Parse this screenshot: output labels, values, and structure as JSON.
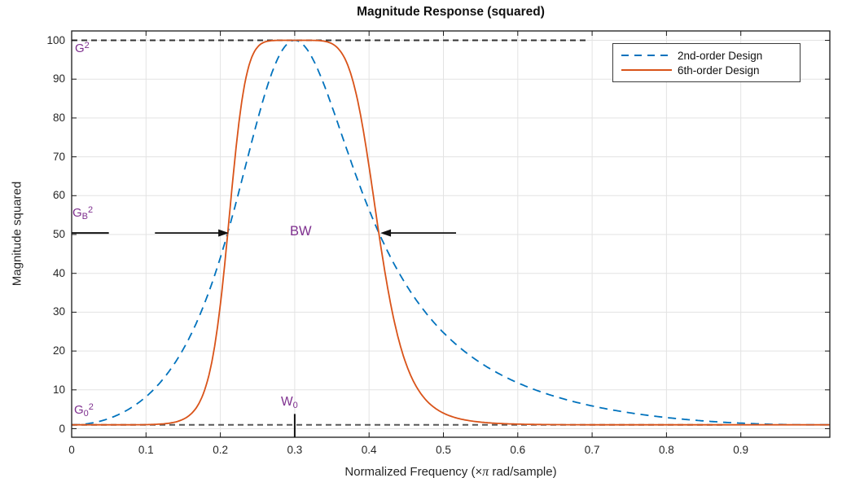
{
  "figure": {
    "title": "Magnitude Response (squared)",
    "background": "#ffffff"
  },
  "axis_labels": {
    "ylabel": "Magnitude squared",
    "xlabel_pre": "Normalized Frequency (×",
    "xlabel_pi": "π",
    "xlabel_post": " rad/sample)"
  },
  "annotations_text": {
    "color": "#7E2F8E",
    "g2": {
      "base": "G",
      "sup": "2"
    },
    "gb2": {
      "base": "G",
      "sub": "B",
      "sup": "2"
    },
    "g02": {
      "base": "G",
      "sub": "0",
      "sup": "2"
    },
    "bw": "BW",
    "w0": {
      "base": "W",
      "sub": "0"
    }
  },
  "chart_data": {
    "type": "line",
    "title": "Magnitude Response (squared)",
    "xlabel": "Normalized Frequency (×π rad/sample)",
    "ylabel": "Magnitude squared",
    "xlim": [
      0,
      1.02
    ],
    "ylim": [
      -2.2,
      102.4
    ],
    "grid": true,
    "grid_color": "#e3e3e3",
    "axis_color": "#1a1a1a",
    "xticks": [
      0,
      0.1,
      0.2,
      0.3,
      0.4,
      0.5,
      0.6,
      0.7,
      0.8,
      0.9
    ],
    "xtick_labels": [
      "0",
      "0.1",
      "0.2",
      "0.3",
      "0.4",
      "0.5",
      "0.6",
      "0.7",
      "0.8",
      "0.9"
    ],
    "yticks": [
      0,
      10,
      20,
      30,
      40,
      50,
      60,
      70,
      80,
      90,
      100
    ],
    "ytick_labels": [
      "0",
      "10",
      "20",
      "30",
      "40",
      "50",
      "60",
      "70",
      "80",
      "90",
      "100"
    ],
    "legend": {
      "position": "northeast",
      "border_color": "#3c3c3c",
      "entries": [
        "2nd-order Design",
        "6th-order Design"
      ]
    },
    "series": [
      {
        "name": "2nd-order Design",
        "color": "#0072BD",
        "line_style": "dashed",
        "line_width": 1.8,
        "model": {
          "type": "digital-peaking-eq",
          "order": 2,
          "N": 1,
          "peak_gain_sq": 100,
          "ref_gain_sq": 1,
          "center_freq": 0.3,
          "t0": 0.509525,
          "b": 0.41592,
          "band_edges": [
            0.211,
            0.415
          ],
          "bandwidth_gain_sq": 50.5
        },
        "samples": [
          [
            0,
            1
          ],
          [
            0.05,
            2.6
          ],
          [
            0.1,
            8.2
          ],
          [
            0.15,
            20.4
          ],
          [
            0.2,
            44.1
          ],
          [
            0.25,
            79.5
          ],
          [
            0.3,
            100
          ],
          [
            0.35,
            83.0
          ],
          [
            0.4,
            56.4
          ],
          [
            0.45,
            37.0
          ],
          [
            0.5,
            24.8
          ],
          [
            0.55,
            17.0
          ],
          [
            0.6,
            11.8
          ],
          [
            0.65,
            8.3
          ],
          [
            0.7,
            5.9
          ],
          [
            0.75,
            4.1
          ],
          [
            0.8,
            2.9
          ],
          [
            0.85,
            2.0
          ],
          [
            0.9,
            1.4
          ],
          [
            0.95,
            1.1
          ],
          [
            1,
            1
          ]
        ]
      },
      {
        "name": "6th-order Design",
        "color": "#D95319",
        "line_style": "solid",
        "line_width": 1.8,
        "model": {
          "type": "digital-peaking-eq",
          "order": 6,
          "N": 3,
          "peak_gain_sq": 100,
          "ref_gain_sq": 1,
          "center_freq": 0.3,
          "t0": 0.509525,
          "b": 0.41592,
          "band_edges": [
            0.211,
            0.415
          ],
          "bandwidth_gain_sq": 50.5
        },
        "samples": [
          [
            0,
            1
          ],
          [
            0.05,
            1
          ],
          [
            0.1,
            1
          ],
          [
            0.15,
            2.4
          ],
          [
            0.2,
            32.0
          ],
          [
            0.25,
            98.3
          ],
          [
            0.3,
            100
          ],
          [
            0.35,
            99.1
          ],
          [
            0.4,
            67.5
          ],
          [
            0.45,
            16.6
          ],
          [
            0.5,
            4.0
          ],
          [
            0.55,
            1.7
          ],
          [
            0.6,
            1.2
          ],
          [
            0.65,
            1.1
          ],
          [
            0.7,
            1
          ],
          [
            0.75,
            1
          ],
          [
            0.8,
            1
          ],
          [
            0.85,
            1
          ],
          [
            0.9,
            1
          ],
          [
            0.95,
            1
          ],
          [
            1,
            1
          ]
        ]
      }
    ],
    "reference_lines": [
      {
        "label": "G^2",
        "y": 100,
        "x_start": 0,
        "x_end": 0.692,
        "color": "#333333",
        "style": "dashed",
        "width": 2
      },
      {
        "label": "G0^2",
        "y": 1,
        "x_start": 0,
        "x_end": 0.879,
        "color": "#595959",
        "style": "dashed",
        "width": 2
      }
    ],
    "annotations": {
      "bw_level": 50.4,
      "left_arrow": {
        "x_tail": 0.112,
        "x_head": 0.2115,
        "y": 50.4
      },
      "right_arrow": {
        "x_tail": 0.517,
        "x_head": 0.4152,
        "y": 50.4
      },
      "axis_stub": {
        "x_start": 0,
        "x_end": 0.05,
        "y": 50.4
      },
      "w0_marker": {
        "x": 0.3,
        "y_bottom": -2.2,
        "y_top": 3.8
      }
    }
  }
}
